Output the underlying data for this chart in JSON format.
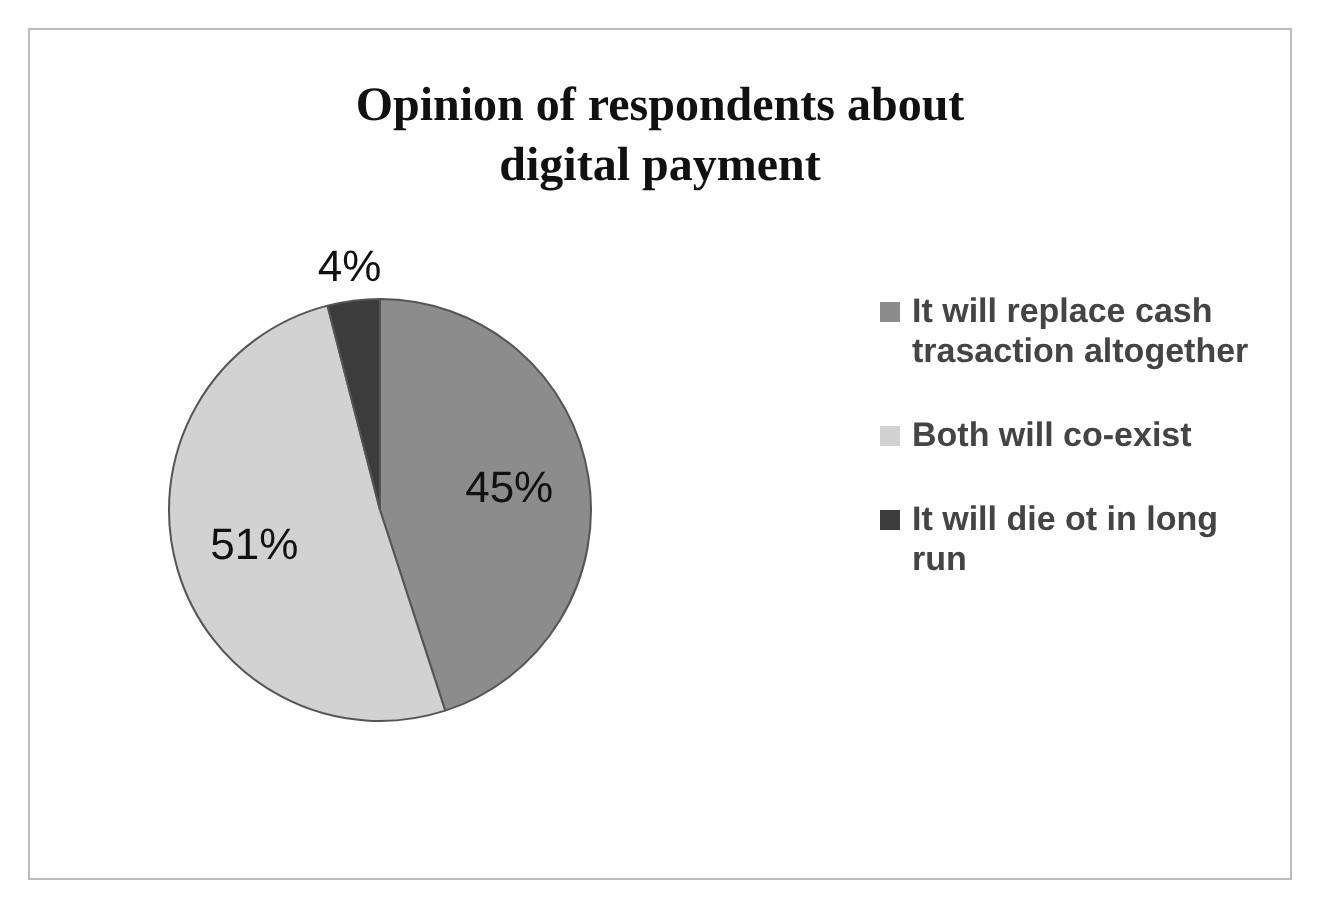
{
  "chart_data": {
    "type": "pie",
    "title": "Opinion of respondents about digital payment",
    "categories": [
      "It will replace cash trasaction altogether",
      "Both will co-exist",
      "It will die ot in long run"
    ],
    "values": [
      45,
      51,
      4
    ],
    "colors": [
      "#8c8c8c",
      "#d2d2d2",
      "#3c3c3c"
    ],
    "value_labels": [
      "45%",
      "51%",
      "4%"
    ],
    "legend": "right"
  }
}
